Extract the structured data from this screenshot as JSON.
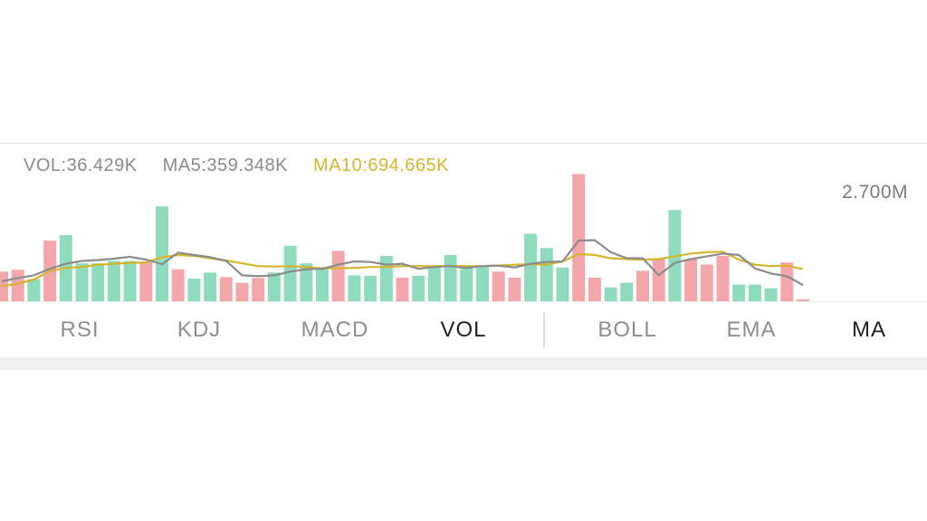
{
  "legend": {
    "vol": "VOL:36.429K",
    "ma5": "MA5:359.348K",
    "ma10": "MA10:694.665K"
  },
  "axis_max_label": "2.700M",
  "colors": {
    "up": "#8edcbc",
    "down": "#f4a7ab",
    "ma5_line": "#8c8c8c",
    "ma10_line": "#d6b52a"
  },
  "tabs": {
    "left": [
      {
        "label": "RSI",
        "active": false
      },
      {
        "label": "KDJ",
        "active": false
      },
      {
        "label": "MACD",
        "active": false
      },
      {
        "label": "VOL",
        "active": true
      }
    ],
    "right": [
      {
        "label": "BOLL",
        "active": false
      },
      {
        "label": "EMA",
        "active": false
      },
      {
        "label": "MA",
        "active": true
      }
    ]
  },
  "chart_data": {
    "type": "bar",
    "ylim": [
      0,
      2700000
    ],
    "bars": [
      {
        "v": 640000,
        "dir": "down"
      },
      {
        "v": 680000,
        "dir": "down"
      },
      {
        "v": 480000,
        "dir": "up"
      },
      {
        "v": 1310000,
        "dir": "down"
      },
      {
        "v": 1430000,
        "dir": "up"
      },
      {
        "v": 820000,
        "dir": "up"
      },
      {
        "v": 820000,
        "dir": "up"
      },
      {
        "v": 870000,
        "dir": "up"
      },
      {
        "v": 870000,
        "dir": "up"
      },
      {
        "v": 840000,
        "dir": "down"
      },
      {
        "v": 2050000,
        "dir": "up"
      },
      {
        "v": 690000,
        "dir": "down"
      },
      {
        "v": 490000,
        "dir": "up"
      },
      {
        "v": 620000,
        "dir": "up"
      },
      {
        "v": 520000,
        "dir": "down"
      },
      {
        "v": 400000,
        "dir": "down"
      },
      {
        "v": 500000,
        "dir": "down"
      },
      {
        "v": 620000,
        "dir": "up"
      },
      {
        "v": 1200000,
        "dir": "up"
      },
      {
        "v": 820000,
        "dir": "up"
      },
      {
        "v": 740000,
        "dir": "up"
      },
      {
        "v": 1090000,
        "dir": "down"
      },
      {
        "v": 560000,
        "dir": "up"
      },
      {
        "v": 550000,
        "dir": "up"
      },
      {
        "v": 980000,
        "dir": "up"
      },
      {
        "v": 510000,
        "dir": "down"
      },
      {
        "v": 550000,
        "dir": "up"
      },
      {
        "v": 740000,
        "dir": "up"
      },
      {
        "v": 1000000,
        "dir": "up"
      },
      {
        "v": 730000,
        "dir": "up"
      },
      {
        "v": 740000,
        "dir": "up"
      },
      {
        "v": 640000,
        "dir": "down"
      },
      {
        "v": 510000,
        "dir": "down"
      },
      {
        "v": 1460000,
        "dir": "up"
      },
      {
        "v": 1150000,
        "dir": "up"
      },
      {
        "v": 730000,
        "dir": "up"
      },
      {
        "v": 2750000,
        "dir": "down"
      },
      {
        "v": 510000,
        "dir": "down"
      },
      {
        "v": 300000,
        "dir": "up"
      },
      {
        "v": 400000,
        "dir": "up"
      },
      {
        "v": 660000,
        "dir": "down"
      },
      {
        "v": 930000,
        "dir": "down"
      },
      {
        "v": 1970000,
        "dir": "up"
      },
      {
        "v": 910000,
        "dir": "down"
      },
      {
        "v": 790000,
        "dir": "down"
      },
      {
        "v": 980000,
        "dir": "down"
      },
      {
        "v": 360000,
        "dir": "up"
      },
      {
        "v": 360000,
        "dir": "up"
      },
      {
        "v": 280000,
        "dir": "up"
      },
      {
        "v": 840000,
        "dir": "down"
      },
      {
        "v": 36429,
        "dir": "down"
      }
    ],
    "ma5": [
      430000,
      500000,
      560000,
      700000,
      810000,
      870000,
      890000,
      920000,
      960000,
      900000,
      800000,
      1050000,
      1000000,
      950000,
      870000,
      560000,
      540000,
      560000,
      640000,
      690000,
      700000,
      790000,
      860000,
      850000,
      790000,
      810000,
      700000,
      740000,
      760000,
      720000,
      760000,
      770000,
      730000,
      810000,
      850000,
      860000,
      1310000,
      1320000,
      1060000,
      930000,
      930000,
      560000,
      830000,
      910000,
      970000,
      1030000,
      1000000,
      710000,
      600000,
      540000,
      350000
    ],
    "ma10": [
      320000,
      380000,
      470000,
      650000,
      720000,
      740000,
      790000,
      810000,
      830000,
      840000,
      950000,
      1000000,
      980000,
      930000,
      880000,
      820000,
      760000,
      750000,
      760000,
      740000,
      710000,
      710000,
      720000,
      740000,
      740000,
      760000,
      760000,
      760000,
      760000,
      760000,
      760000,
      770000,
      790000,
      800000,
      790000,
      860000,
      1020000,
      1000000,
      930000,
      910000,
      900000,
      910000,
      970000,
      1030000,
      1060000,
      1070000,
      900000,
      790000,
      760000,
      770000,
      690000
    ]
  }
}
